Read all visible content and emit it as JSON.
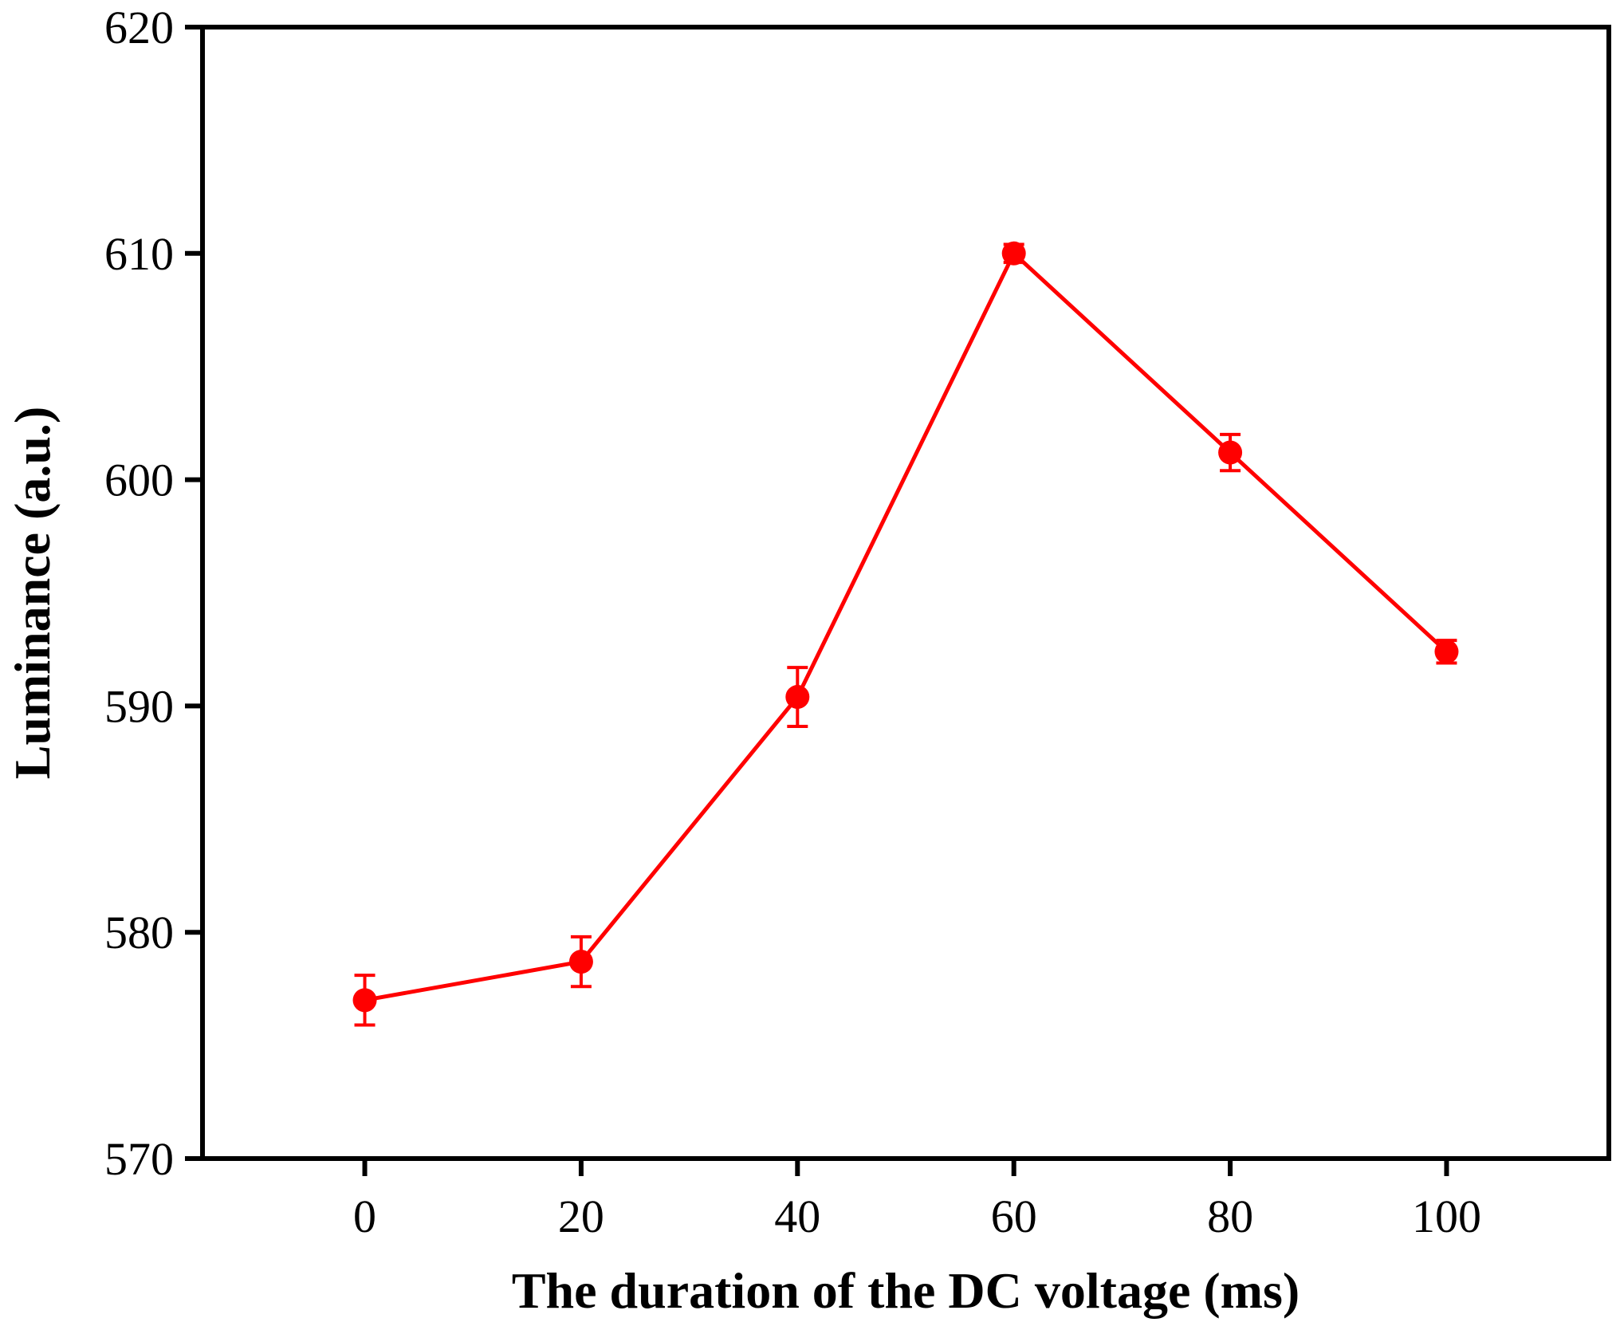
{
  "chart_data": {
    "type": "line",
    "title": "",
    "xlabel": "The duration of the DC voltage (ms)",
    "ylabel": "Luminance (a.u.)",
    "xlim": [
      -15,
      115
    ],
    "ylim": [
      570,
      620
    ],
    "xticks": [
      0,
      20,
      40,
      60,
      80,
      100
    ],
    "yticks": [
      570,
      580,
      590,
      600,
      610,
      620
    ],
    "xtick_labels": [
      "0",
      "20",
      "40",
      "60",
      "80",
      "100"
    ],
    "ytick_labels": [
      "570",
      "580",
      "590",
      "600",
      "610",
      "620"
    ],
    "grid": false,
    "legend": "none",
    "series": [
      {
        "name": "Luminance",
        "color": "#ff0000",
        "marker": "circle",
        "x": [
          0,
          20,
          40,
          60,
          80,
          100
        ],
        "y": [
          577.0,
          578.7,
          590.4,
          610.0,
          601.2,
          592.4
        ],
        "error": [
          1.1,
          1.1,
          1.3,
          0.4,
          0.8,
          0.5
        ]
      }
    ]
  }
}
